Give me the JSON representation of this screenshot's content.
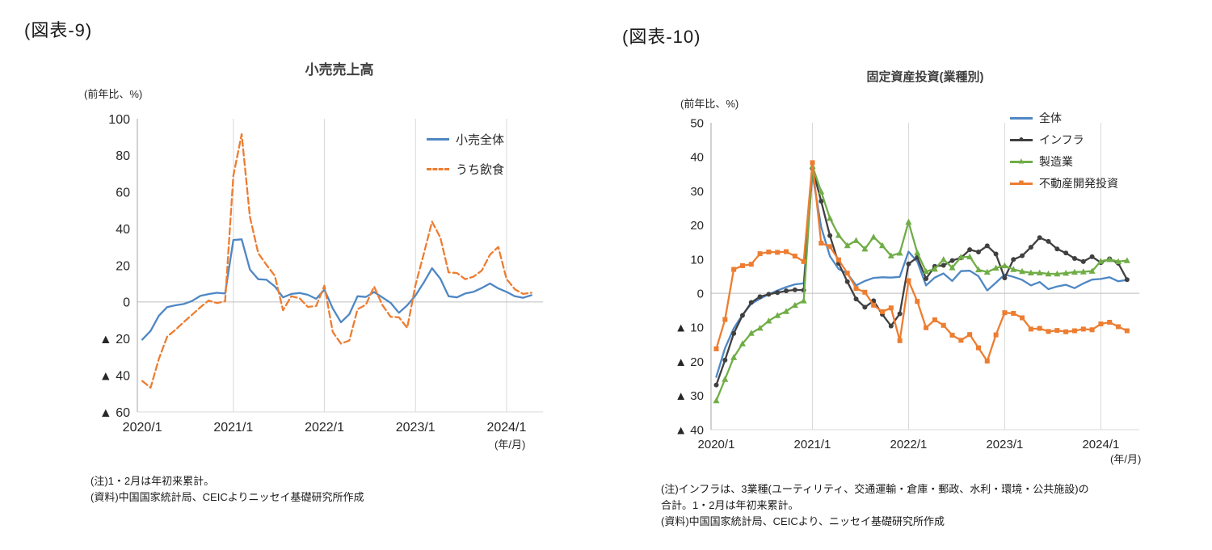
{
  "figures": [
    {
      "tag": "(図表-9)",
      "notes": [
        "(注)1・2月は年初来累計。",
        "(資料)中国国家統計局、CEICよりニッセイ基礎研究所作成"
      ]
    },
    {
      "tag": "(図表-10)",
      "notes": [
        "(注)インフラは、3業種(ユーティリティ、交通運輸・倉庫・郵政、水利・環境・公共施設)の",
        "合計。1・2月は年初来累計。",
        "(資料)中国国家統計局、CEICより、ニッセイ基礎研究所作成"
      ]
    }
  ],
  "chart_data": [
    {
      "type": "line",
      "title": "小売売上高",
      "ylabel": "(前年比、%)",
      "xlabel": "(年/月)",
      "ylim": [
        -60,
        100
      ],
      "grid": "vertical-only",
      "legend_position": "top-right-inside",
      "ytick_values": [
        100,
        80,
        60,
        40,
        20,
        0,
        -20,
        -40,
        -60
      ],
      "ytick_labels": [
        "100",
        "80",
        "60",
        "40",
        "20",
        "0",
        "▲ 20",
        "▲ 40",
        "▲ 60"
      ],
      "xtick_indices": [
        0,
        11,
        22,
        33,
        44
      ],
      "xtick_labels": [
        "2020/1",
        "2021/1",
        "2022/1",
        "2023/1",
        "2024/1"
      ],
      "categories": [
        "2020/1-2",
        "2020/3",
        "2020/4",
        "2020/5",
        "2020/6",
        "2020/7",
        "2020/8",
        "2020/9",
        "2020/10",
        "2020/11",
        "2020/12",
        "2021/1-2",
        "2021/3",
        "2021/4",
        "2021/5",
        "2021/6",
        "2021/7",
        "2021/8",
        "2021/9",
        "2021/10",
        "2021/11",
        "2021/12",
        "2022/1-2",
        "2022/3",
        "2022/4",
        "2022/5",
        "2022/6",
        "2022/7",
        "2022/8",
        "2022/9",
        "2022/10",
        "2022/11",
        "2022/12",
        "2023/1-2",
        "2023/3",
        "2023/4",
        "2023/5",
        "2023/6",
        "2023/7",
        "2023/8",
        "2023/9",
        "2023/10",
        "2023/11",
        "2023/12",
        "2024/1-2",
        "2024/3",
        "2024/4",
        "2024/5"
      ],
      "series": [
        {
          "name": "小売全体",
          "color": "#4E87C4",
          "dash": false,
          "marker": "none",
          "marker_glyph": "",
          "values": [
            -20.5,
            -15.8,
            -7.5,
            -2.8,
            -1.8,
            -1.1,
            0.5,
            3.3,
            4.3,
            5.0,
            4.6,
            33.8,
            34.2,
            17.7,
            12.4,
            12.1,
            8.5,
            2.5,
            4.4,
            4.9,
            3.9,
            1.7,
            6.7,
            -3.5,
            -11.1,
            -6.7,
            3.1,
            2.7,
            5.4,
            2.5,
            -0.5,
            -5.9,
            -1.8,
            3.5,
            10.6,
            18.4,
            12.7,
            3.1,
            2.5,
            4.6,
            5.5,
            7.6,
            10.1,
            7.4,
            5.5,
            3.1,
            2.3,
            3.7
          ]
        },
        {
          "name": "うち飲食",
          "color": "#ED7D31",
          "dash": true,
          "marker": "none",
          "marker_glyph": "",
          "values": [
            -43.1,
            -46.8,
            -31.1,
            -18.9,
            -15.2,
            -11.0,
            -7.0,
            -2.9,
            0.8,
            -0.6,
            0.4,
            68.9,
            91.6,
            46.4,
            26.6,
            20.2,
            14.3,
            -4.5,
            3.1,
            2.0,
            -2.7,
            -2.2,
            8.9,
            -16.4,
            -22.7,
            -21.1,
            -4.0,
            -1.5,
            8.4,
            -1.7,
            -8.1,
            -8.4,
            -14.1,
            9.2,
            26.3,
            43.8,
            35.1,
            16.1,
            15.8,
            12.4,
            13.8,
            17.1,
            25.8,
            30.0,
            12.5,
            6.9,
            4.4,
            5.0
          ]
        }
      ]
    },
    {
      "type": "line",
      "title": "固定資産投資(業種別)",
      "ylabel": "(前年比、%)",
      "xlabel": "(年/月)",
      "ylim": [
        -40,
        50
      ],
      "grid": "vertical-only",
      "legend_position": "top-right-inside",
      "ytick_values": [
        50,
        40,
        30,
        20,
        10,
        0,
        -10,
        -20,
        -30,
        -40
      ],
      "ytick_labels": [
        "50",
        "40",
        "30",
        "20",
        "10",
        "0",
        "▲ 10",
        "▲ 20",
        "▲ 30",
        "▲ 40"
      ],
      "xtick_indices": [
        0,
        11,
        22,
        33,
        44
      ],
      "xtick_labels": [
        "2020/1",
        "2021/1",
        "2022/1",
        "2023/1",
        "2024/1"
      ],
      "categories": [
        "2020/1-2",
        "2020/3",
        "2020/4",
        "2020/5",
        "2020/6",
        "2020/7",
        "2020/8",
        "2020/9",
        "2020/10",
        "2020/11",
        "2020/12",
        "2021/1-2",
        "2021/3",
        "2021/4",
        "2021/5",
        "2021/6",
        "2021/7",
        "2021/8",
        "2021/9",
        "2021/10",
        "2021/11",
        "2021/12",
        "2022/1-2",
        "2022/3",
        "2022/4",
        "2022/5",
        "2022/6",
        "2022/7",
        "2022/8",
        "2022/9",
        "2022/10",
        "2022/11",
        "2022/12",
        "2023/1-2",
        "2023/3",
        "2023/4",
        "2023/5",
        "2023/6",
        "2023/7",
        "2023/8",
        "2023/9",
        "2023/10",
        "2023/11",
        "2023/12",
        "2024/1-2",
        "2024/3",
        "2024/4",
        "2024/5"
      ],
      "series": [
        {
          "name": "全体",
          "color": "#4E87C4",
          "dash": false,
          "marker": "none",
          "marker_glyph": "",
          "values": [
            -24.5,
            -16.1,
            -10.3,
            -6.3,
            -3.1,
            -1.6,
            -0.3,
            0.8,
            1.8,
            2.6,
            2.9,
            35.0,
            19.4,
            10.9,
            7.1,
            5.8,
            2.3,
            3.6,
            4.5,
            4.7,
            4.6,
            4.8,
            12.2,
            9.3,
            2.3,
            4.6,
            5.8,
            3.6,
            6.5,
            6.6,
            5.0,
            0.8,
            3.1,
            5.5,
            4.8,
            3.9,
            2.3,
            3.3,
            1.2,
            2.0,
            2.5,
            1.5,
            2.9,
            4.0,
            4.2,
            4.7,
            3.5,
            3.9
          ]
        },
        {
          "name": "インフラ",
          "color": "#404040",
          "dash": false,
          "marker": "circle",
          "marker_glyph": "●",
          "values": [
            -26.9,
            -19.6,
            -11.8,
            -6.5,
            -2.7,
            -1.0,
            -0.3,
            0.2,
            0.7,
            1.0,
            0.9,
            36.6,
            27.0,
            16.9,
            8.8,
            3.4,
            -1.7,
            -4.1,
            -2.2,
            -6.2,
            -9.6,
            -6.0,
            8.6,
            10.5,
            4.3,
            7.9,
            8.2,
            9.6,
            10.4,
            12.8,
            12.1,
            13.9,
            11.5,
            4.5,
            9.9,
            11.0,
            13.5,
            16.3,
            15.2,
            13.0,
            11.8,
            10.2,
            9.3,
            10.7,
            9.0,
            10.1,
            8.8,
            4.0
          ]
        },
        {
          "name": "製造業",
          "color": "#70AD47",
          "dash": false,
          "marker": "triangle",
          "marker_glyph": "▲",
          "values": [
            -31.5,
            -25.2,
            -18.8,
            -14.8,
            -11.7,
            -10.2,
            -8.1,
            -6.5,
            -5.3,
            -3.5,
            -2.2,
            37.3,
            29.8,
            22.0,
            17.0,
            14.0,
            15.5,
            13.0,
            16.5,
            14.0,
            11.0,
            11.8,
            20.9,
            11.9,
            6.4,
            7.1,
            9.9,
            7.5,
            10.6,
            10.7,
            6.9,
            6.2,
            7.4,
            8.1,
            7.0,
            6.4,
            6.0,
            6.0,
            5.7,
            5.7,
            5.9,
            6.2,
            6.3,
            6.5,
            9.4,
            9.9,
            9.3,
            9.6
          ]
        },
        {
          "name": "不動産開発投資",
          "color": "#ED7D31",
          "dash": false,
          "marker": "square",
          "marker_glyph": "■",
          "values": [
            -16.3,
            -7.7,
            7.0,
            8.1,
            8.5,
            11.6,
            12.1,
            12.0,
            12.2,
            10.9,
            9.3,
            38.3,
            14.7,
            13.7,
            9.8,
            5.9,
            1.4,
            0.3,
            -3.5,
            -5.4,
            -4.3,
            -13.9,
            3.7,
            -2.4,
            -10.1,
            -7.8,
            -9.4,
            -12.3,
            -13.8,
            -12.1,
            -16.0,
            -19.9,
            -12.2,
            -5.7,
            -5.9,
            -7.2,
            -10.5,
            -10.3,
            -11.2,
            -10.9,
            -11.3,
            -11.0,
            -10.5,
            -10.7,
            -9.0,
            -8.5,
            -9.8,
            -11.0
          ]
        }
      ]
    }
  ]
}
